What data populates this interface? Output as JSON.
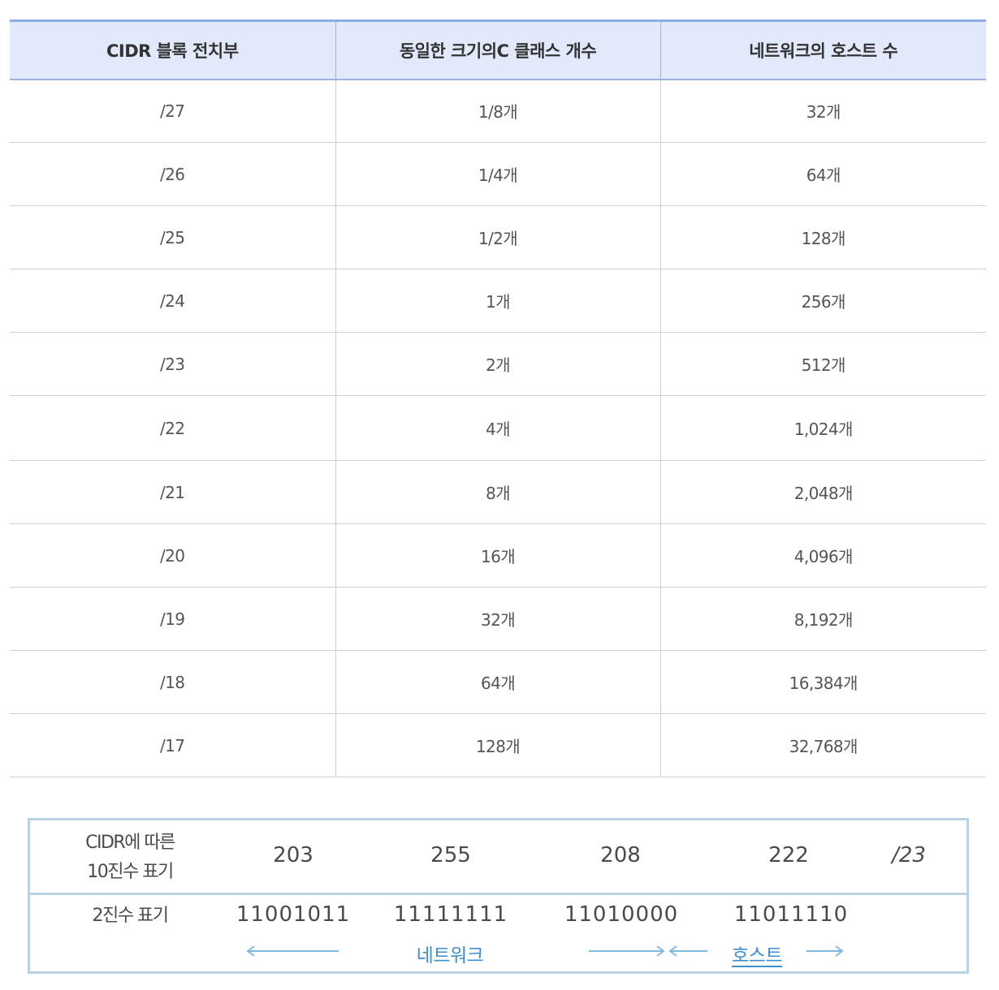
{
  "table": {
    "headers": [
      "CIDR 블록 전치부",
      "동일한 크기의C 클래스 개수",
      "네트워크의 호스트 수"
    ],
    "rows": [
      [
        "/27",
        "1/8개",
        "32개"
      ],
      [
        "/26",
        "1/4개",
        "64개"
      ],
      [
        "/25",
        "1/2개",
        "128개"
      ],
      [
        "/24",
        "1개",
        "256개"
      ],
      [
        "/23",
        "2개",
        "512개"
      ],
      [
        "/22",
        "4개",
        "1,024개"
      ],
      [
        "/21",
        "8개",
        "2,048개"
      ],
      [
        "/20",
        "16개",
        "4,096개"
      ],
      [
        "/19",
        "32개",
        "8,192개"
      ],
      [
        "/18",
        "64개",
        "16,384개"
      ],
      [
        "/17",
        "128개",
        "32,768개"
      ]
    ]
  },
  "notation": {
    "decimal_label_line1": "CIDR에 따른",
    "decimal_label_line2": "10진수 표기",
    "binary_label": "2진수 표기",
    "octets_decimal": [
      "203",
      "255",
      "208",
      "222"
    ],
    "prefix": "/23",
    "octets_binary": [
      "11001011",
      "11111111",
      "11010000",
      "11011110"
    ],
    "network_label": "네트워크",
    "host_label": "호스트",
    "arrow_color": "#7fb8dd",
    "label_color": "#3e8fd0"
  }
}
